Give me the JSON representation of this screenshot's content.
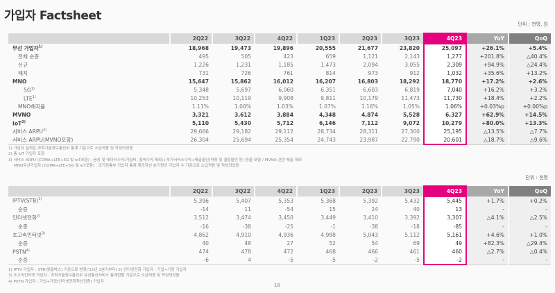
{
  "title": "가입자 Factsheet",
  "unit1": "단위 : 천명, 원",
  "unit2": "단위 : 천명",
  "columns": [
    "2Q22",
    "3Q22",
    "4Q22",
    "1Q23",
    "2Q23",
    "3Q23",
    "4Q23",
    "YoY",
    "QoQ"
  ],
  "table1": [
    {
      "label": "무선 가입자",
      "sup": "1)",
      "bold": true,
      "indent": 0,
      "values": [
        "18,968",
        "19,473",
        "19,896",
        "20,555",
        "21,677",
        "23,820",
        "25,097",
        "+26.1%",
        "+5.4%"
      ]
    },
    {
      "label": "전체 순증",
      "indent": 1,
      "values": [
        "495",
        "505",
        "423",
        "659",
        "1,121",
        "2,143",
        "1,277",
        "+201.8%",
        "△40.4%"
      ]
    },
    {
      "label": "신규",
      "indent": 1,
      "values": [
        "1,226",
        "1,231",
        "1,185",
        "1,473",
        "2,094",
        "3,055",
        "2,309",
        "+94.9%",
        "△24.4%"
      ]
    },
    {
      "label": "해지",
      "indent": 1,
      "values": [
        "731",
        "726",
        "761",
        "814",
        "973",
        "912",
        "1,032",
        "+35.6%",
        "+13.2%"
      ]
    },
    {
      "label": "MNO",
      "bold": true,
      "indent": 0,
      "values": [
        "15,647",
        "15,862",
        "16,012",
        "16,207",
        "16,803",
        "18,292",
        "18,770",
        "+17.2%",
        "+2.6%"
      ]
    },
    {
      "label": "5G",
      "sup": "1)",
      "indent": 2,
      "values": [
        "5,348",
        "5,697",
        "6,060",
        "6,351",
        "6,603",
        "6,819",
        "7,040",
        "+16.2%",
        "+3.2%"
      ]
    },
    {
      "label": "LTE",
      "sup": "1)",
      "indent": 2,
      "values": [
        "10,253",
        "10,119",
        "9,908",
        "9,811",
        "10,179",
        "11,473",
        "11,730",
        "+18.4%",
        "+2.2%"
      ]
    },
    {
      "label": "MNO해지율",
      "indent": 1,
      "values": [
        "1.11%",
        "1.00%",
        "1.03%",
        "1.07%",
        "1.16%",
        "1.05%",
        "1.06%",
        "+0.03%p",
        "+0.00%p"
      ]
    },
    {
      "label": "MVNO",
      "bold": true,
      "indent": 0,
      "values": [
        "3,321",
        "3,612",
        "3,884",
        "4,348",
        "4,874",
        "5,528",
        "6,327",
        "+62.9%",
        "+14.5%"
      ]
    },
    {
      "label": "IoT",
      "sup": "2)",
      "bold": true,
      "indent": 0,
      "values": [
        "5,110",
        "5,430",
        "5,712",
        "6,146",
        "7,112",
        "9,072",
        "10,279",
        "+80.0%",
        "+13.3%"
      ]
    },
    {
      "label": "서비스 ARPU",
      "sup": "3)",
      "indent": 0,
      "values": [
        "29,666",
        "29,182",
        "29,112",
        "28,734",
        "28,311",
        "27,300",
        "25,195",
        "△13.5%",
        "△7.7%"
      ]
    },
    {
      "label": "서비스 ARPU(MVNO포함)",
      "indent": 0,
      "values": [
        "26,304",
        "25,694",
        "25,354",
        "24,743",
        "23,987",
        "22,790",
        "20,601",
        "△18.7%",
        "△9.6%"
      ]
    }
  ],
  "notes1": [
    "1) 가입자 실적은 과학기술정보통신부 통계 기준으로 소급적용 및 작성되었음",
    "2) 총 IoT 가입자 포함",
    "3) 서비스 ARPU (CDMA+LTE+5G 및 IoT포함) : 음성 및 데이터수익(가입비, 접속수익 제외)+부가서비스수익+매출할인(약정 및 결합할인 등) 등을 포함 / MVNO 관련 매출 제외",
    "MNO무선가입자 (CDMA+LTE+5G 및 IoT포함) : 과기정통부 가입자 통계 재공하선 분기평균 가입자 수 기준으로 소급적용 및 작성되었음"
  ],
  "table2": [
    {
      "label": "IPTV(STB)",
      "sup": "1)",
      "indent": 0,
      "values": [
        "5,396",
        "5,407",
        "5,353",
        "5,368",
        "5,392",
        "5,432",
        "5,445",
        "+1.7%",
        "+0.2%"
      ]
    },
    {
      "label": "순증",
      "indent": 1,
      "values": [
        "-14",
        "11",
        "-54",
        "15",
        "24",
        "40",
        "13",
        "-",
        "-"
      ]
    },
    {
      "label": "인터넷전화",
      "sup": "2)",
      "indent": 0,
      "values": [
        "3,512",
        "3,474",
        "3,450",
        "3,449",
        "3,410",
        "3,392",
        "3,307",
        "△4.1%",
        "△2.5%"
      ]
    },
    {
      "label": "순증",
      "indent": 1,
      "values": [
        "-16",
        "-38",
        "-25",
        "-1",
        "-38",
        "-18",
        "-85",
        "-",
        "-"
      ]
    },
    {
      "label": "초고속인터넷",
      "sup": "3)",
      "indent": 0,
      "values": [
        "4,862",
        "4,910",
        "4,936",
        "4,988",
        "5,043",
        "5,112",
        "5,161",
        "+4.6%",
        "+1.0%"
      ]
    },
    {
      "label": "순증",
      "indent": 1,
      "values": [
        "40",
        "48",
        "27",
        "52",
        "54",
        "69",
        "49",
        "+82.3%",
        "△29.4%"
      ]
    },
    {
      "label": "PSTN",
      "sup": "4)",
      "indent": 0,
      "values": [
        "474",
        "478",
        "472",
        "468",
        "466",
        "461",
        "460",
        "△2.7%",
        "△0.4%"
      ]
    },
    {
      "label": "순증",
      "indent": 1,
      "values": [
        "-6",
        "4",
        "-5",
        "-5",
        "-2",
        "-5",
        "-2",
        "-",
        "-"
      ]
    }
  ],
  "notes2": [
    "1) IPTV 가입자 : STB(셋톱박스) 기준으로 변경('15년 1분기부터)   2) 인터넷전화 가입자 : 기업+가정 가입자",
    "3) 초고속인터넷 가입자 : 과학기술정보통신부 유선통신서비스 통계현황 기준으로 소급적용 및 작성되었음",
    "4) PSTN 가입자 : 기업+가정(인터넷전화착신전환) 가입자"
  ],
  "page_number": "18",
  "colors": {
    "highlight": "#e6007e",
    "header": "#d9d9d9",
    "yoy_header": "#a8a8a8",
    "qoq_header": "#808080"
  }
}
